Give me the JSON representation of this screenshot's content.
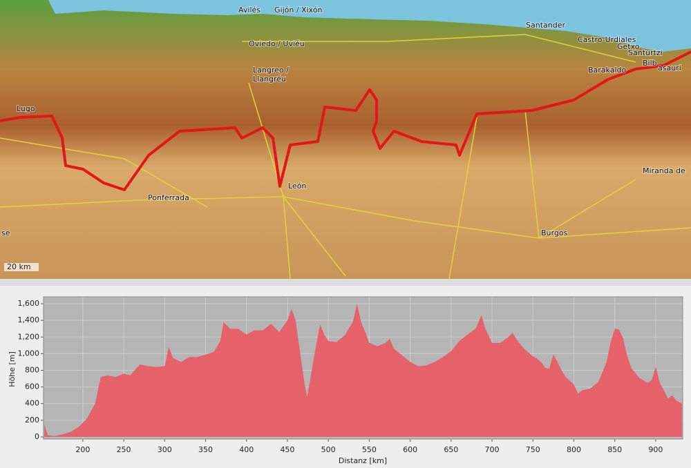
{
  "map": {
    "places": [
      "Avilés",
      "Gijón / Xixón",
      "Oviedo / Uviéu",
      "Langreo /",
      "Llangréu",
      "Santander",
      "Castro-Urdiales",
      "Getxo",
      "Santurtzi",
      "Barakaldo",
      "Bilb",
      "asauri",
      "Lugo",
      "Ponferrada",
      "León",
      "Burgos",
      "Miranda de",
      "se"
    ],
    "scale": "20 km"
  },
  "chart_data": {
    "type": "area",
    "color": "#e6626b",
    "background": "#b5b5b5",
    "grid": true,
    "ylabel": "Höhe [m]",
    "xlabel": "Distanz [km]",
    "x": [
      153,
      157,
      165,
      175,
      185,
      195,
      205,
      215,
      222,
      230,
      240,
      250,
      258,
      265,
      270,
      280,
      290,
      300,
      305,
      310,
      320,
      330,
      340,
      350,
      360,
      368,
      372,
      380,
      390,
      400,
      410,
      420,
      430,
      440,
      450,
      455,
      460,
      465,
      470,
      474,
      478,
      485,
      490,
      495,
      500,
      510,
      520,
      530,
      535,
      540,
      545,
      550,
      560,
      570,
      575,
      580,
      590,
      600,
      610,
      620,
      630,
      640,
      650,
      660,
      670,
      680,
      687,
      692,
      700,
      710,
      720,
      725,
      730,
      740,
      750,
      755,
      760,
      765,
      770,
      775,
      780,
      785,
      790,
      800,
      805,
      810,
      820,
      830,
      840,
      845,
      850,
      855,
      860,
      865,
      870,
      880,
      890,
      895,
      900,
      905,
      910,
      915,
      920,
      925,
      932
    ],
    "values": [
      150,
      20,
      10,
      30,
      60,
      120,
      220,
      400,
      720,
      740,
      720,
      760,
      740,
      820,
      870,
      850,
      840,
      850,
      1080,
      950,
      900,
      960,
      960,
      990,
      1020,
      1150,
      1380,
      1300,
      1300,
      1230,
      1280,
      1280,
      1360,
      1260,
      1400,
      1540,
      1400,
      1050,
      700,
      480,
      700,
      1100,
      1350,
      1230,
      1150,
      1140,
      1220,
      1380,
      1600,
      1380,
      1260,
      1130,
      1090,
      1130,
      1180,
      1060,
      980,
      900,
      850,
      860,
      900,
      960,
      1030,
      1150,
      1230,
      1300,
      1460,
      1300,
      1130,
      1130,
      1200,
      1250,
      1170,
      1050,
      970,
      940,
      900,
      830,
      820,
      990,
      900,
      800,
      720,
      630,
      520,
      560,
      580,
      660,
      900,
      1140,
      1300,
      1290,
      1190,
      980,
      830,
      710,
      650,
      680,
      840,
      650,
      560,
      460,
      500,
      440,
      400
    ],
    "xlim": [
      152,
      933
    ],
    "ylim": [
      -25,
      1683
    ],
    "xticks": [
      200,
      250,
      300,
      350,
      400,
      450,
      500,
      550,
      600,
      650,
      700,
      750,
      800,
      850,
      900
    ],
    "yticks": [
      0,
      200,
      400,
      600,
      800,
      {
        "value": 1000,
        "label": "1,000"
      },
      {
        "value": 1200,
        "label": "1,200"
      },
      {
        "value": 1400,
        "label": "1,400"
      },
      {
        "value": 1600,
        "label": "1,600"
      }
    ]
  }
}
